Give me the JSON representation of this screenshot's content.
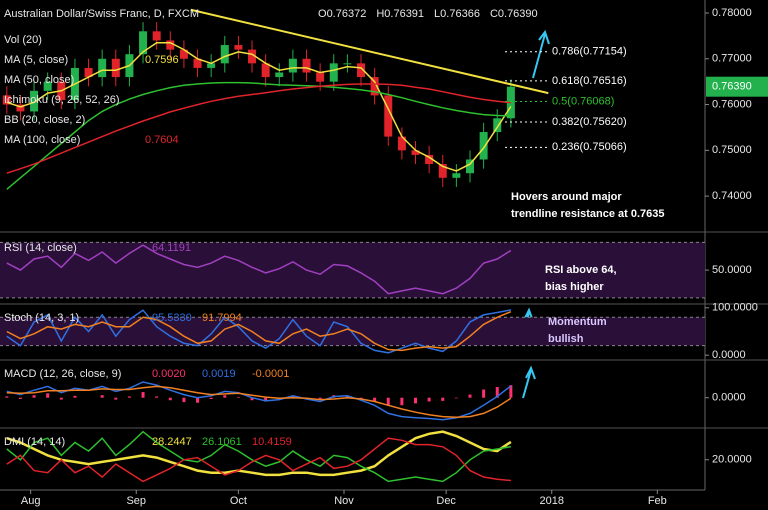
{
  "chart_data": [
    {
      "type": "candlestick",
      "title": "Australian Dollar/Swiss Franc, D, FXCM",
      "quote": [
        {
          "label": "O",
          "value": "0.76372"
        },
        {
          "label": "H",
          "value": "0.76391"
        },
        {
          "label": "L",
          "value": "0.76366"
        },
        {
          "label": "C",
          "value": "0.76390"
        }
      ],
      "studies": [
        {
          "label": "Vol (20)"
        },
        {
          "label": "MA (5, close)",
          "reading": "0.7596",
          "color": "#f0e040"
        },
        {
          "label": "MA (50, close)"
        },
        {
          "label": "Ichimoku (9, 26, 52, 26)"
        },
        {
          "label": "BB (20, close, 2)"
        },
        {
          "label": "MA (100, close)",
          "reading": "0.7604",
          "color": "#e0242a"
        }
      ],
      "x": [
        -7,
        -3,
        1,
        5,
        9,
        13,
        17,
        21,
        25,
        29,
        33,
        37,
        41,
        45,
        49,
        53,
        57,
        61,
        65,
        69,
        73,
        77,
        81,
        85,
        89,
        93,
        97,
        101,
        105,
        109,
        113,
        117,
        121,
        125,
        129,
        133,
        137,
        141
      ],
      "open": [
        0.762,
        0.76,
        0.7585,
        0.763,
        0.765,
        0.761,
        0.768,
        0.766,
        0.77,
        0.766,
        0.771,
        0.776,
        0.774,
        0.772,
        0.77,
        0.768,
        0.769,
        0.773,
        0.772,
        0.769,
        0.766,
        0.767,
        0.77,
        0.767,
        0.765,
        0.769,
        0.769,
        0.766,
        0.762,
        0.753,
        0.75,
        0.749,
        0.747,
        0.744,
        0.745,
        0.748,
        0.754,
        0.757
      ],
      "high": [
        0.764,
        0.762,
        0.765,
        0.767,
        0.767,
        0.77,
        0.77,
        0.772,
        0.772,
        0.773,
        0.778,
        0.778,
        0.776,
        0.774,
        0.772,
        0.771,
        0.775,
        0.775,
        0.774,
        0.771,
        0.769,
        0.772,
        0.772,
        0.769,
        0.771,
        0.771,
        0.771,
        0.768,
        0.764,
        0.755,
        0.752,
        0.751,
        0.749,
        0.747,
        0.75,
        0.756,
        0.759,
        0.7655
      ],
      "low": [
        0.758,
        0.7565,
        0.7565,
        0.761,
        0.759,
        0.759,
        0.764,
        0.764,
        0.764,
        0.764,
        0.769,
        0.772,
        0.77,
        0.768,
        0.766,
        0.766,
        0.767,
        0.77,
        0.767,
        0.764,
        0.764,
        0.765,
        0.765,
        0.763,
        0.763,
        0.767,
        0.764,
        0.76,
        0.751,
        0.748,
        0.747,
        0.745,
        0.742,
        0.742,
        0.743,
        0.746,
        0.752,
        0.755
      ],
      "close": [
        0.76,
        0.7585,
        0.763,
        0.765,
        0.761,
        0.768,
        0.766,
        0.77,
        0.766,
        0.771,
        0.776,
        0.774,
        0.772,
        0.77,
        0.768,
        0.769,
        0.773,
        0.772,
        0.769,
        0.766,
        0.767,
        0.77,
        0.767,
        0.765,
        0.769,
        0.769,
        0.766,
        0.762,
        0.753,
        0.75,
        0.749,
        0.747,
        0.744,
        0.745,
        0.748,
        0.754,
        0.757,
        0.7639
      ],
      "up_color": "#22b14c",
      "down_color": "#e0242a",
      "series": [
        {
          "color": "#f0e040",
          "values": [
            0.7605,
            0.7595,
            0.7605,
            0.7625,
            0.763,
            0.7645,
            0.766,
            0.7675,
            0.7675,
            0.7685,
            0.7715,
            0.7735,
            0.7735,
            0.772,
            0.77,
            0.769,
            0.7705,
            0.7715,
            0.771,
            0.769,
            0.7675,
            0.768,
            0.768,
            0.767,
            0.7675,
            0.7683,
            0.768,
            0.765,
            0.759,
            0.753,
            0.75,
            0.7485,
            0.7465,
            0.7455,
            0.747,
            0.7505,
            0.755,
            0.7596
          ]
        },
        {
          "color": "#2ec02e",
          "values": [
            0.7415,
            0.744,
            0.7465,
            0.749,
            0.7515,
            0.754,
            0.7565,
            0.7585,
            0.76,
            0.7612,
            0.7622,
            0.763,
            0.7637,
            0.7642,
            0.7645,
            0.7647,
            0.7648,
            0.7648,
            0.7647,
            0.7645,
            0.7643,
            0.7642,
            0.7641,
            0.764,
            0.7638,
            0.7635,
            0.7632,
            0.7628,
            0.7622,
            0.7615,
            0.7607,
            0.76,
            0.7593,
            0.7587,
            0.7582,
            0.7578,
            0.7576,
            0.7575
          ]
        },
        {
          "color": "#e0242a",
          "values": [
            0.745,
            0.746,
            0.747,
            0.7482,
            0.7494,
            0.7506,
            0.7518,
            0.753,
            0.7542,
            0.7553,
            0.7564,
            0.7574,
            0.7584,
            0.7592,
            0.76,
            0.7607,
            0.7613,
            0.7618,
            0.7622,
            0.7626,
            0.763,
            0.7634,
            0.7637,
            0.764,
            0.7642,
            0.7644,
            0.7645,
            0.7645,
            0.7644,
            0.7642,
            0.7638,
            0.7634,
            0.7628,
            0.7622,
            0.7616,
            0.7611,
            0.7607,
            0.7604
          ]
        }
      ],
      "trendline": {
        "x": [
          47,
          152
        ],
        "y": [
          0.7807,
          0.7625
        ],
        "color": "#f0e040"
      },
      "fib_levels": [
        {
          "value": 0.77154,
          "label": "0.786(0.77154)",
          "color": "#ffffff"
        },
        {
          "value": 0.76516,
          "label": "0.618(0.76516)",
          "color": "#ffffff"
        },
        {
          "value": 0.76068,
          "label": "0.5(0.76068)",
          "color": "#2ec02e"
        },
        {
          "value": 0.7562,
          "label": "0.382(0.75620)",
          "color": "#ffffff"
        },
        {
          "value": 0.75066,
          "label": "0.236(0.75066)",
          "color": "#ffffff"
        }
      ],
      "last_price": {
        "value": 0.7639,
        "label": "0.76390",
        "color": "#22b14c"
      },
      "annotation": [
        "Hovers around major",
        "trendline resistance at 0.7635"
      ],
      "xlim": [
        -9,
        198
      ],
      "ylim": [
        0.7326,
        0.7824
      ],
      "yticks": [
        {
          "value": 0.78,
          "label": "0.78000"
        },
        {
          "value": 0.77,
          "label": "0.77000"
        },
        {
          "value": 0.76,
          "label": "0.76000"
        },
        {
          "value": 0.75,
          "label": "0.75000"
        },
        {
          "value": 0.74,
          "label": "0.74000"
        }
      ]
    },
    {
      "type": "line",
      "title": "RSI (14, close)",
      "x": [
        -7,
        -3,
        1,
        5,
        9,
        13,
        17,
        21,
        25,
        29,
        33,
        37,
        41,
        45,
        49,
        53,
        57,
        61,
        65,
        69,
        73,
        77,
        81,
        85,
        89,
        93,
        97,
        101,
        105,
        109,
        113,
        117,
        121,
        125,
        129,
        133,
        137,
        141
      ],
      "series": [
        {
          "color": "#a040c0",
          "reading": "64.1191",
          "values": [
            55,
            50,
            58,
            60,
            52,
            62,
            57,
            63,
            55,
            62,
            68,
            62,
            58,
            54,
            52,
            55,
            60,
            57,
            52,
            48,
            51,
            56,
            50,
            47,
            54,
            53,
            48,
            42,
            33,
            35,
            37,
            35,
            33,
            37,
            44,
            55,
            58,
            64.1191
          ]
        }
      ],
      "band": [
        30,
        70
      ],
      "band_color": "#2a0f38",
      "annotation": [
        "RSI above 64,",
        "bias higher"
      ],
      "xlim": [
        -9,
        198
      ],
      "ylim": [
        27,
        76
      ],
      "yticks": [
        {
          "value": 50,
          "label": "50.0000"
        }
      ]
    },
    {
      "type": "line",
      "title": "Stoch (14, 3, 1)",
      "x": [
        -7,
        -3,
        1,
        5,
        9,
        13,
        17,
        21,
        25,
        29,
        33,
        37,
        41,
        45,
        49,
        53,
        57,
        61,
        65,
        69,
        73,
        77,
        81,
        85,
        89,
        93,
        97,
        101,
        105,
        109,
        113,
        117,
        121,
        125,
        129,
        133,
        137,
        141
      ],
      "series": [
        {
          "color": "#3070e0",
          "reading": "95.5330",
          "values": [
            40,
            20,
            70,
            85,
            30,
            80,
            50,
            85,
            40,
            75,
            95,
            60,
            40,
            25,
            20,
            45,
            80,
            60,
            30,
            15,
            35,
            75,
            40,
            20,
            70,
            60,
            25,
            10,
            5,
            15,
            25,
            15,
            8,
            30,
            70,
            85,
            90,
            95.533
          ]
        },
        {
          "color": "#f08020",
          "reading": "91.7994",
          "values": [
            50,
            35,
            45,
            60,
            55,
            65,
            60,
            70,
            60,
            60,
            80,
            75,
            60,
            40,
            25,
            30,
            55,
            65,
            50,
            30,
            25,
            45,
            55,
            40,
            45,
            55,
            45,
            25,
            12,
            10,
            15,
            18,
            15,
            18,
            40,
            65,
            80,
            91.7994
          ]
        }
      ],
      "band": [
        20,
        80
      ],
      "band_color": "#2a0f38",
      "annotation": [
        "Momentum",
        "bullish"
      ],
      "xlim": [
        -9,
        198
      ],
      "ylim": [
        -6,
        108
      ],
      "yticks": [
        {
          "value": 100,
          "label": "100.0000"
        },
        {
          "value": 0,
          "label": "0.0000"
        }
      ]
    },
    {
      "type": "line",
      "title": "MACD (12, 26, close, 9)",
      "x": [
        -7,
        -3,
        1,
        5,
        9,
        13,
        17,
        21,
        25,
        29,
        33,
        37,
        41,
        45,
        49,
        53,
        57,
        61,
        65,
        69,
        73,
        77,
        81,
        85,
        89,
        93,
        97,
        101,
        105,
        109,
        113,
        117,
        121,
        125,
        129,
        133,
        137,
        141
      ],
      "series": [
        {
          "color": "#ff3070",
          "reading": "0.0020",
          "style": "bar",
          "values": [
            0.0002,
            -0.0002,
            0.0004,
            0.0007,
            -0.0003,
            0.0003,
            0,
            0.0004,
            -0.0003,
            0.0002,
            0.0009,
            0.0002,
            -0.0004,
            -0.0007,
            -0.0008,
            -0.0002,
            0.0004,
            0.0001,
            -0.0004,
            -0.0006,
            -0.0002,
            0.0003,
            -0.0001,
            -0.0003,
            0.0004,
            0.0003,
            -0.0002,
            -0.0006,
            -0.0013,
            -0.0012,
            -0.0009,
            -0.0006,
            -0.0005,
            -0.0001,
            0.0005,
            0.0013,
            0.0017,
            0.002
          ]
        },
        {
          "color": "#3070e0",
          "reading": "0.0019",
          "values": [
            0.001,
            0.0005,
            0.0012,
            0.0018,
            0.0008,
            0.0015,
            0.0012,
            0.0018,
            0.001,
            0.0015,
            0.0025,
            0.002,
            0.0012,
            0.0005,
            0,
            0.0003,
            0.001,
            0.0008,
            0,
            -0.0005,
            -0.0003,
            0.0003,
            -0.0002,
            -0.0006,
            0.0002,
            0.0003,
            -0.0004,
            -0.0012,
            -0.0025,
            -0.003,
            -0.0032,
            -0.0033,
            -0.0035,
            -0.0032,
            -0.0025,
            -0.0012,
            0.0002,
            0.0019
          ]
        },
        {
          "color": "#f08020",
          "reading": "-0.0001",
          "values": [
            0.0008,
            0.0007,
            0.0008,
            0.0011,
            0.0011,
            0.0012,
            0.0012,
            0.0014,
            0.0013,
            0.0013,
            0.0016,
            0.0018,
            0.0016,
            0.0012,
            0.0008,
            0.0005,
            0.0006,
            0.0007,
            0.0004,
            0.0001,
            -0.0001,
            0,
            -0.0001,
            -0.0003,
            -0.0002,
            0,
            -0.0002,
            -0.0006,
            -0.0012,
            -0.0018,
            -0.0023,
            -0.0027,
            -0.003,
            -0.0031,
            -0.003,
            -0.0025,
            -0.0015,
            -0.0001
          ]
        }
      ],
      "xlim": [
        -9,
        198
      ],
      "ylim": [
        -0.0045,
        0.006
      ],
      "yticks": [
        {
          "value": 0,
          "label": "0.0000"
        }
      ]
    },
    {
      "type": "line",
      "title": "DMI (14, 14)",
      "x": [
        -7,
        -3,
        1,
        5,
        9,
        13,
        17,
        21,
        25,
        29,
        33,
        37,
        41,
        45,
        49,
        53,
        57,
        61,
        65,
        69,
        73,
        77,
        81,
        85,
        89,
        93,
        97,
        101,
        105,
        109,
        113,
        117,
        121,
        125,
        129,
        133,
        137,
        141
      ],
      "series": [
        {
          "color": "#f0e040",
          "width": 2.5,
          "reading": "28.2447",
          "values": [
            30,
            28,
            25,
            22,
            20,
            19,
            18,
            19,
            20,
            21,
            22,
            21,
            19,
            17,
            15,
            14,
            14,
            15,
            14,
            13,
            13,
            14,
            14,
            13,
            13,
            14,
            15,
            17,
            22,
            26,
            30,
            32,
            33,
            31,
            28,
            25,
            24,
            28.2447
          ]
        },
        {
          "color": "#2ec02e",
          "reading": "26.1061",
          "values": [
            25,
            20,
            28,
            30,
            22,
            28,
            24,
            30,
            22,
            27,
            33,
            28,
            24,
            20,
            19,
            22,
            27,
            24,
            20,
            17,
            19,
            24,
            20,
            17,
            22,
            21,
            17,
            14,
            10,
            11,
            12,
            11,
            10,
            14,
            20,
            24,
            25,
            26.1061
          ]
        },
        {
          "color": "#e0242a",
          "reading": "10.4159",
          "values": [
            18,
            22,
            15,
            14,
            20,
            14,
            17,
            12,
            18,
            14,
            10,
            13,
            16,
            20,
            21,
            17,
            13,
            15,
            19,
            22,
            20,
            15,
            18,
            21,
            16,
            17,
            20,
            25,
            30,
            29,
            27,
            27,
            26,
            22,
            15,
            12,
            11,
            10.4159
          ]
        }
      ],
      "xlim": [
        -9,
        198
      ],
      "ylim": [
        6,
        34.7
      ],
      "yticks": [
        {
          "value": 20,
          "label": "20.0000"
        }
      ],
      "xticks": [
        {
          "value": 0,
          "label": "Aug"
        },
        {
          "value": 31,
          "label": "Sep"
        },
        {
          "value": 61,
          "label": "Oct"
        },
        {
          "value": 92,
          "label": "Nov"
        },
        {
          "value": 122,
          "label": "Dec"
        },
        {
          "value": 153,
          "label": "2018"
        },
        {
          "value": 184,
          "label": "Feb"
        }
      ]
    }
  ]
}
